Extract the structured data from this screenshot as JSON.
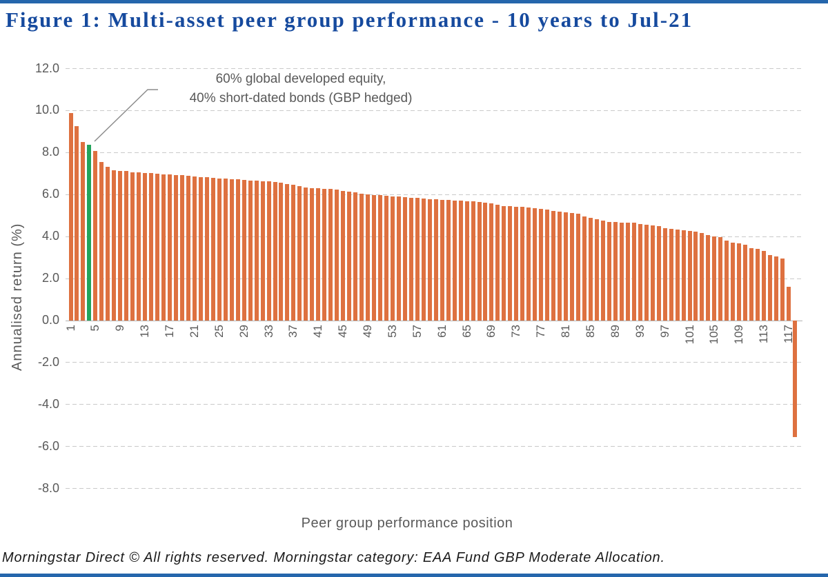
{
  "header": {
    "title": "Figure 1: Multi-asset peer group performance - 10 years to Jul-21"
  },
  "chart_data": {
    "type": "bar",
    "title": "Figure 1: Multi-asset peer group performance - 10 years to Jul-21",
    "xlabel": "Peer group performance position",
    "ylabel": "Annualised return (%)",
    "ylim": [
      -8.0,
      12.0
    ],
    "grid": true,
    "y_ticks": [
      "12.0",
      "10.0",
      "8.0",
      "6.0",
      "4.0",
      "2.0",
      "0.0",
      "-2.0",
      "-4.0",
      "-6.0",
      "-8.0"
    ],
    "x_ticks": [
      1,
      5,
      9,
      13,
      17,
      21,
      25,
      29,
      33,
      37,
      41,
      45,
      49,
      53,
      57,
      61,
      65,
      69,
      73,
      77,
      81,
      85,
      89,
      93,
      97,
      101,
      105,
      109,
      113,
      117
    ],
    "positions": "1 to 118",
    "values": [
      9.85,
      9.25,
      8.5,
      8.35,
      8.05,
      7.55,
      7.3,
      7.15,
      7.1,
      7.1,
      7.05,
      7.05,
      7.0,
      7.0,
      6.98,
      6.96,
      6.94,
      6.92,
      6.9,
      6.88,
      6.85,
      6.82,
      6.8,
      6.78,
      6.76,
      6.74,
      6.72,
      6.7,
      6.68,
      6.66,
      6.64,
      6.62,
      6.6,
      6.57,
      6.54,
      6.5,
      6.46,
      6.4,
      6.33,
      6.3,
      6.28,
      6.26,
      6.24,
      6.21,
      6.17,
      6.13,
      6.09,
      6.04,
      6.0,
      5.97,
      5.95,
      5.93,
      5.9,
      5.88,
      5.86,
      5.84,
      5.82,
      5.79,
      5.77,
      5.75,
      5.73,
      5.72,
      5.7,
      5.69,
      5.67,
      5.65,
      5.64,
      5.61,
      5.55,
      5.5,
      5.44,
      5.42,
      5.41,
      5.39,
      5.36,
      5.33,
      5.31,
      5.27,
      5.21,
      5.16,
      5.13,
      5.1,
      5.06,
      4.94,
      4.86,
      4.82,
      4.73,
      4.68,
      4.67,
      4.65,
      4.64,
      4.63,
      4.59,
      4.56,
      4.51,
      4.47,
      4.38,
      4.34,
      4.33,
      4.3,
      4.24,
      4.21,
      4.16,
      4.06,
      3.99,
      3.95,
      3.8,
      3.71,
      3.67,
      3.6,
      3.44,
      3.41,
      3.31,
      3.1,
      3.04,
      2.94,
      1.6,
      -5.55
    ],
    "highlight": {
      "position": 4,
      "value": 8.35,
      "color": "#23A45C"
    },
    "bar_color": "#DE7140",
    "annotation": {
      "line1": "60% global developed equity,",
      "line2": "40% short-dated bonds (GBP hedged)"
    },
    "legend_position": "none"
  },
  "footer": {
    "text": "Morningstar Direct © All rights reserved. Morningstar category: EAA Fund GBP Moderate Allocation."
  },
  "colors": {
    "accent_blue": "#164A9E",
    "rule_blue": "#2566AC",
    "bar_orange": "#DE7140",
    "bar_green": "#23A45C",
    "axis_text": "#595959",
    "gridline": "#C9C9C9",
    "callout_line": "#8C8C8C"
  }
}
